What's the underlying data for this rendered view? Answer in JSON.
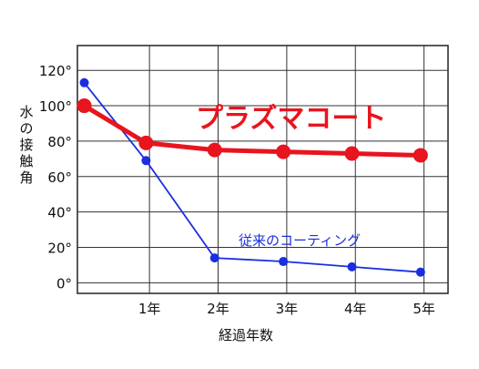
{
  "chart_data": {
    "type": "line",
    "xlabel": "経過年数",
    "ylabel": "水の接触角",
    "x_ticks": [
      "1年",
      "2年",
      "3年",
      "4年",
      "5年"
    ],
    "x_tick_values": [
      1,
      2,
      3,
      4,
      5
    ],
    "xlim": [
      -0.05,
      5.35
    ],
    "y_ticks": [
      "0°",
      "20°",
      "40°",
      "60°",
      "80°",
      "100°",
      "120°"
    ],
    "y_tick_values": [
      0,
      20,
      40,
      60,
      80,
      100,
      120
    ],
    "ylim": [
      -6,
      134
    ],
    "grid": true,
    "series": [
      {
        "name": "プラズマコート",
        "color": "#e8141e",
        "x": [
          0.05,
          0.95,
          1.95,
          2.95,
          3.95,
          4.95
        ],
        "y": [
          100,
          79,
          75,
          74,
          73,
          72
        ]
      },
      {
        "name": "従来のコーティング",
        "color": "#1a2ee0",
        "x": [
          0.05,
          0.95,
          1.95,
          2.95,
          3.95,
          4.95
        ],
        "y": [
          113,
          69,
          14,
          12,
          9,
          6
        ]
      }
    ]
  }
}
